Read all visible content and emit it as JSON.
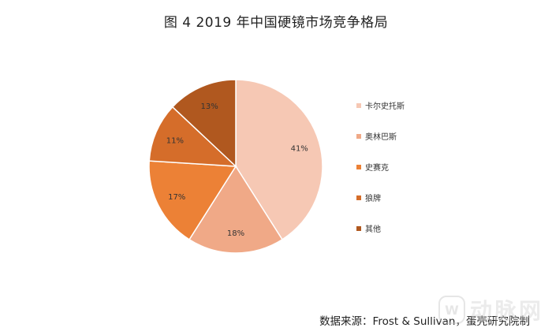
{
  "chart_data": {
    "type": "pie",
    "title": "图  4 2019 年中国硬镜市场竞争格局",
    "slices": [
      {
        "label": "卡尔史托斯",
        "value": 41,
        "display": "41%",
        "color": "#f6c8b4"
      },
      {
        "label": "奥林巴斯",
        "value": 18,
        "display": "18%",
        "color": "#f0a987"
      },
      {
        "label": "史赛克",
        "value": 17,
        "display": "17%",
        "color": "#ec8136"
      },
      {
        "label": "狼牌",
        "value": 11,
        "display": "11%",
        "color": "#d56d2a"
      },
      {
        "label": "其他",
        "value": 13,
        "display": "13%",
        "color": "#b0581f"
      }
    ],
    "legend_position": "right",
    "start_angle": "12 o'clock",
    "direction": "clockwise"
  },
  "source": "数据来源：Frost & Sullivan，蛋壳研究院制",
  "watermark": {
    "mark": "W",
    "text": "动脉网"
  }
}
